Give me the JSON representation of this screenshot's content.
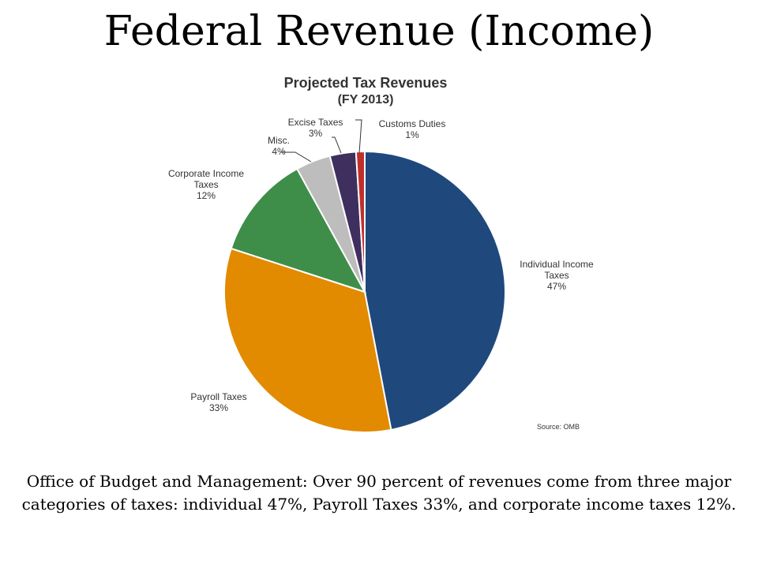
{
  "slide": {
    "title": "Federal Revenue (Income)",
    "caption": "Office of Budget and Management: Over 90 percent of revenues come from three major categories of taxes: individual 47%, Payroll Taxes 33%, and corporate income taxes 12%."
  },
  "chart_data": {
    "type": "pie",
    "title": "Projected Tax Revenues",
    "subtitle": "(FY 2013)",
    "source": "Source: OMB",
    "slices": [
      {
        "name": "Individual  Income Taxes",
        "label": "Individual  Income\nTaxes",
        "value": 47,
        "value_label": "47%",
        "color": "#1F497D"
      },
      {
        "name": "Payroll Taxes",
        "label": "Payroll Taxes",
        "value": 33,
        "value_label": "33%",
        "color": "#E28A00"
      },
      {
        "name": "Corporate  Income Taxes",
        "label": "Corporate  Income\nTaxes",
        "value": 12,
        "value_label": "12%",
        "color": "#3E8E4A"
      },
      {
        "name": "Misc.",
        "label": "Misc.",
        "value": 4,
        "value_label": "4%",
        "color": "#BDBDBD"
      },
      {
        "name": "Excise Taxes",
        "label": "Excise Taxes",
        "value": 3,
        "value_label": "3%",
        "color": "#3F2F5E"
      },
      {
        "name": "Customs Duties",
        "label": "Customs Duties",
        "value": 1,
        "value_label": "1%",
        "color": "#C0302B"
      }
    ],
    "start": "top",
    "direction": "clockwise",
    "legend": "none (labels on slices)"
  }
}
